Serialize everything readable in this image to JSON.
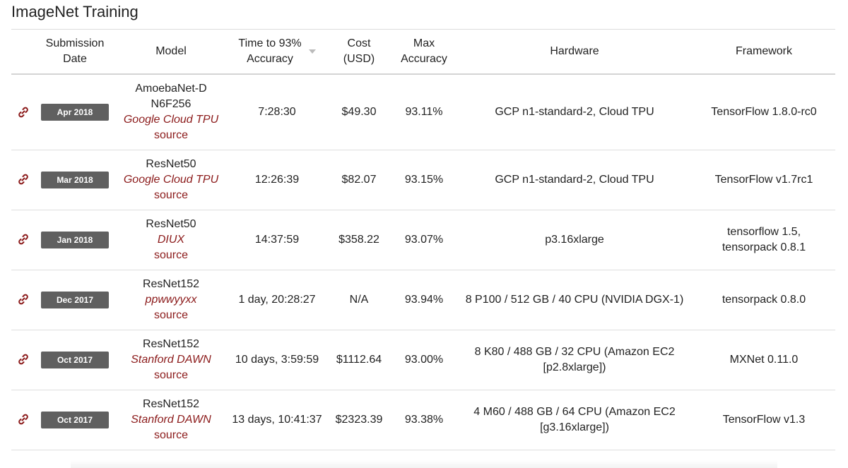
{
  "page": {
    "title": "ImageNet Training"
  },
  "table": {
    "headers": {
      "date_line1": "Submission",
      "date_line2": "Date",
      "model": "Model",
      "time_line1": "Time to 93%",
      "time_line2": "Accuracy",
      "cost_line1": "Cost",
      "cost_line2": "(USD)",
      "acc_line1": "Max",
      "acc_line2": "Accuracy",
      "hardware": "Hardware",
      "framework": "Framework"
    },
    "rows": [
      {
        "date": "Apr 2018",
        "model_line1": "AmoebaNet-D",
        "model_line2": "N6F256",
        "org": "Google Cloud TPU",
        "source": "source",
        "time": "7:28:30",
        "cost": "$49.30",
        "accuracy": "93.11%",
        "hardware_line1": "GCP n1-standard-2, Cloud TPU",
        "hardware_line2": "",
        "framework_line1": "TensorFlow 1.8.0-rc0",
        "framework_line2": ""
      },
      {
        "date": "Mar 2018",
        "model_line1": "ResNet50",
        "model_line2": "",
        "org": "Google Cloud TPU",
        "source": "source",
        "time": "12:26:39",
        "cost": "$82.07",
        "accuracy": "93.15%",
        "hardware_line1": "GCP n1-standard-2, Cloud TPU",
        "hardware_line2": "",
        "framework_line1": "TensorFlow v1.7rc1",
        "framework_line2": ""
      },
      {
        "date": "Jan 2018",
        "model_line1": "ResNet50",
        "model_line2": "",
        "org": "DIUX",
        "source": "source",
        "time": "14:37:59",
        "cost": "$358.22",
        "accuracy": "93.07%",
        "hardware_line1": "p3.16xlarge",
        "hardware_line2": "",
        "framework_line1": "tensorflow 1.5,",
        "framework_line2": "tensorpack 0.8.1"
      },
      {
        "date": "Dec 2017",
        "model_line1": "ResNet152",
        "model_line2": "",
        "org": "ppwwyyxx",
        "source": "source",
        "time": "1 day, 20:28:27",
        "cost": "N/A",
        "accuracy": "93.94%",
        "hardware_line1": "8 P100 / 512 GB / 40 CPU (NVIDIA DGX-1)",
        "hardware_line2": "",
        "framework_line1": "tensorpack 0.8.0",
        "framework_line2": ""
      },
      {
        "date": "Oct 2017",
        "model_line1": "ResNet152",
        "model_line2": "",
        "org": "Stanford DAWN",
        "source": "source",
        "time": "10 days, 3:59:59",
        "cost": "$1112.64",
        "accuracy": "93.00%",
        "hardware_line1": "8 K80 / 488 GB / 32 CPU (Amazon EC2",
        "hardware_line2": "[p2.8xlarge])",
        "framework_line1": "MXNet 0.11.0",
        "framework_line2": ""
      },
      {
        "date": "Oct 2017",
        "model_line1": "ResNet152",
        "model_line2": "",
        "org": "Stanford DAWN",
        "source": "source",
        "time": "13 days, 10:41:37",
        "cost": "$2323.39",
        "accuracy": "93.38%",
        "hardware_line1": "4 M60 / 488 GB / 64 CPU (Amazon EC2",
        "hardware_line2": "[g3.16xlarge])",
        "framework_line1": "TensorFlow v1.3",
        "framework_line2": ""
      }
    ]
  },
  "icons": {
    "row_link": "link-icon",
    "sort": "sort-desc-icon"
  },
  "colors": {
    "accent": "#8b1a1a",
    "badge_bg": "#606060",
    "badge_text": "#ffffff"
  }
}
